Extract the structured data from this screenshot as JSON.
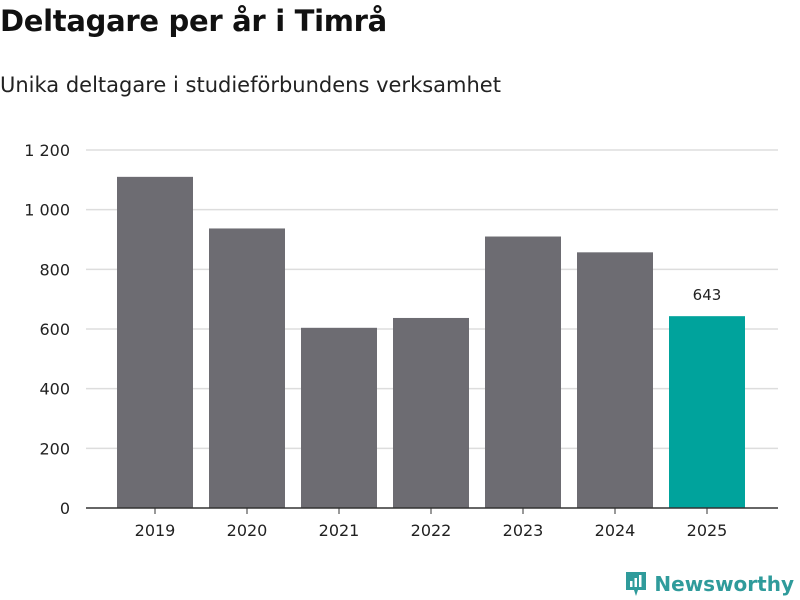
{
  "header": {
    "title": "Deltagare per år i Timrå",
    "subtitle": "Unika deltagare i studieförbundens verksamhet"
  },
  "brand": {
    "name": "Newsworthy",
    "icon": "newsworthy-logo-icon"
  },
  "colors": {
    "bar": "#6d6c72",
    "highlight": "#00a39c",
    "grid": "#dddddd",
    "axis": "#333333"
  },
  "chart_data": {
    "type": "bar",
    "title": "Deltagare per år i Timrå",
    "subtitle": "Unika deltagare i studieförbundens verksamhet",
    "categories": [
      "2019",
      "2020",
      "2021",
      "2022",
      "2023",
      "2024",
      "2025"
    ],
    "values": [
      1110,
      937,
      604,
      637,
      910,
      857,
      643
    ],
    "highlight_index": 6,
    "data_labels": [
      {
        "index": 6,
        "text": "643"
      }
    ],
    "xlabel": "",
    "ylabel": "",
    "ylim": [
      0,
      1200
    ],
    "yticks": [
      0,
      200,
      400,
      600,
      800,
      1000,
      1200
    ],
    "ytick_labels": [
      "0",
      "200",
      "400",
      "600",
      "800",
      "1 000",
      "1 200"
    ],
    "grid": true,
    "legend": "none"
  }
}
